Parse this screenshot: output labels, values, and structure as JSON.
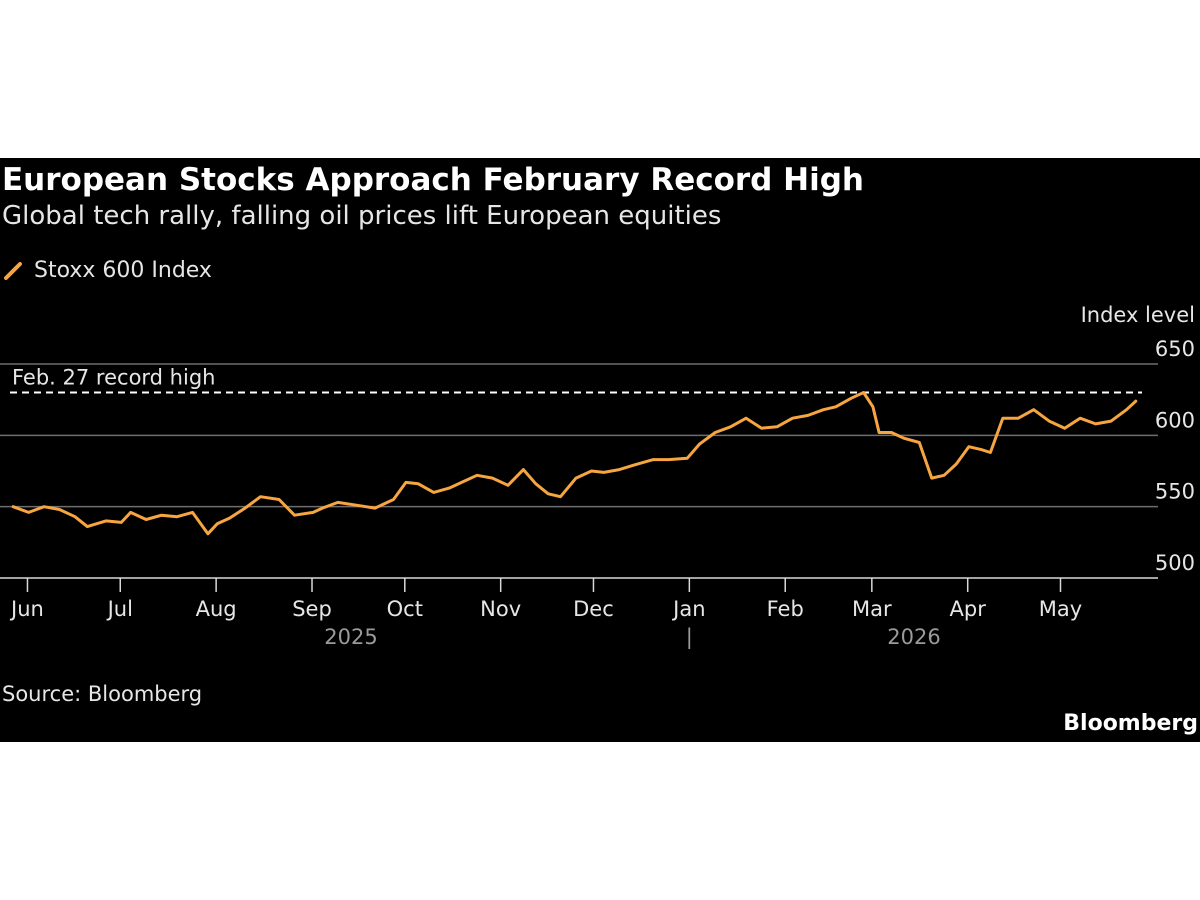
{
  "title": "European Stocks Approach February Record High",
  "subtitle": "Global tech rally, falling oil prices lift European equities",
  "source": "Source: Bloomberg",
  "brand": "Bloomberg",
  "chart_data": {
    "type": "line",
    "ylabel": "Index level",
    "ylim": [
      500,
      650
    ],
    "yticks": [
      500,
      550,
      600,
      650
    ],
    "x_ticks": [
      "Jun",
      "Jul",
      "Aug",
      "Sep",
      "Oct",
      "Nov",
      "Dec",
      "Jan",
      "Feb",
      "Mar",
      "Apr",
      "May"
    ],
    "year_labels": [
      "2025",
      "2026"
    ],
    "year_divider": "|",
    "grid": true,
    "legend": "top-left",
    "reference_line": {
      "label": "Feb. 27 record high",
      "value": 630
    },
    "series": [
      {
        "name": "Stoxx 600 Index",
        "color": "#f7a540",
        "dates": [
          "2025-05-28",
          "2025-06-02",
          "2025-06-07",
          "2025-06-12",
          "2025-06-17",
          "2025-06-21",
          "2025-06-27",
          "2025-07-02",
          "2025-07-05",
          "2025-07-10",
          "2025-07-15",
          "2025-07-20",
          "2025-07-25",
          "2025-07-30",
          "2025-08-02",
          "2025-08-06",
          "2025-08-11",
          "2025-08-16",
          "2025-08-22",
          "2025-08-27",
          "2025-09-02",
          "2025-09-05",
          "2025-09-10",
          "2025-09-16",
          "2025-09-22",
          "2025-09-28",
          "2025-10-02",
          "2025-10-06",
          "2025-10-11",
          "2025-10-16",
          "2025-10-20",
          "2025-10-25",
          "2025-10-30",
          "2025-11-04",
          "2025-11-09",
          "2025-11-13",
          "2025-11-17",
          "2025-11-21",
          "2025-11-26",
          "2025-12-01",
          "2025-12-05",
          "2025-12-10",
          "2025-12-16",
          "2025-12-21",
          "2025-12-26",
          "2026-01-01",
          "2026-01-05",
          "2026-01-10",
          "2026-01-15",
          "2026-01-20",
          "2026-01-25",
          "2026-01-30",
          "2026-02-04",
          "2026-02-09",
          "2026-02-14",
          "2026-02-18",
          "2026-02-23",
          "2026-02-27",
          "2026-03-02",
          "2026-03-04",
          "2026-03-08",
          "2026-03-12",
          "2026-03-17",
          "2026-03-21",
          "2026-03-25",
          "2026-03-29",
          "2026-04-02",
          "2026-04-06",
          "2026-04-09",
          "2026-04-13",
          "2026-04-18",
          "2026-04-23",
          "2026-04-28",
          "2026-05-03",
          "2026-05-08",
          "2026-05-13",
          "2026-05-18",
          "2026-05-23",
          "2026-05-26"
        ],
        "values": [
          550,
          546,
          550,
          548,
          543,
          536,
          540,
          539,
          546,
          541,
          544,
          543,
          546,
          531,
          538,
          542,
          549,
          557,
          555,
          544,
          546,
          549,
          553,
          551,
          549,
          555,
          567,
          566,
          560,
          563,
          567,
          572,
          570,
          565,
          576,
          566,
          559,
          557,
          570,
          575,
          574,
          576,
          580,
          583,
          583,
          584,
          594,
          602,
          606,
          612,
          605,
          606,
          612,
          614,
          618,
          620,
          626,
          630,
          620,
          602,
          602,
          598,
          595,
          570,
          572,
          580,
          592,
          590,
          588,
          612,
          612,
          618,
          610,
          605,
          612,
          608,
          610,
          618,
          624
        ]
      }
    ]
  }
}
